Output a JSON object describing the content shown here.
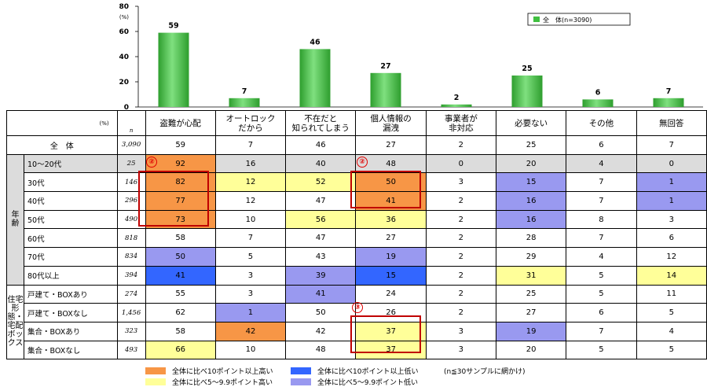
{
  "chart_data": {
    "type": "bar",
    "ylim": [
      0,
      80
    ],
    "yticks": [
      "0",
      "20",
      "40",
      "60",
      "80"
    ],
    "yunit": "(%)",
    "series": [
      {
        "name": "全　体(n=3090)",
        "values": [
          59,
          7,
          46,
          27,
          2,
          25,
          6,
          7
        ]
      }
    ],
    "value_labels": [
      "59",
      "7",
      "46",
      "27",
      "2",
      "25",
      "6",
      "7"
    ],
    "bar_color": "#3fbf3f"
  },
  "legend_box_label": "全　体(n=3090)",
  "table": {
    "unit_header": "(%)",
    "n_header": "n",
    "columns": [
      "盗難が心配",
      "オートロック\nだから",
      "不在だと\n知られてしまう",
      "個人情報の\n漏洩",
      "事業者が\n非対応",
      "必要ない",
      "その他",
      "無回答"
    ],
    "total": {
      "label": "全　体",
      "n": "3,090",
      "values": [
        "59",
        "7",
        "46",
        "27",
        "2",
        "25",
        "6",
        "7"
      ]
    },
    "group_age_label": "年\n齢",
    "group_house_label": "住宅形態・\n宅配ボックス",
    "age_rows": [
      {
        "label": "10～20代",
        "n": "25",
        "values": [
          "92",
          "16",
          "40",
          "48",
          "0",
          "20",
          "4",
          "0"
        ],
        "colors": [
          "oh",
          "",
          "",
          "",
          "",
          "",
          "",
          ""
        ]
      },
      {
        "label": "30代",
        "n": "146",
        "values": [
          "82",
          "12",
          "52",
          "50",
          "3",
          "15",
          "7",
          "1"
        ],
        "colors": [
          "oh",
          "yh",
          "yh",
          "oh",
          "",
          "pl",
          "",
          "pl"
        ]
      },
      {
        "label": "40代",
        "n": "296",
        "values": [
          "77",
          "12",
          "47",
          "41",
          "2",
          "16",
          "7",
          "1"
        ],
        "colors": [
          "oh",
          "",
          "",
          "oh",
          "",
          "pl",
          "",
          "pl"
        ]
      },
      {
        "label": "50代",
        "n": "490",
        "values": [
          "73",
          "10",
          "56",
          "36",
          "2",
          "16",
          "8",
          "3"
        ],
        "colors": [
          "oh",
          "",
          "yh",
          "yh",
          "",
          "pl",
          "",
          ""
        ]
      },
      {
        "label": "60代",
        "n": "818",
        "values": [
          "58",
          "7",
          "47",
          "27",
          "2",
          "28",
          "7",
          "6"
        ],
        "colors": [
          "",
          "",
          "",
          "",
          "",
          "",
          "",
          ""
        ]
      },
      {
        "label": "70代",
        "n": "834",
        "values": [
          "50",
          "5",
          "43",
          "19",
          "2",
          "29",
          "4",
          "12"
        ],
        "colors": [
          "pl",
          "",
          "",
          "pl",
          "",
          "",
          "",
          ""
        ]
      },
      {
        "label": "80代以上",
        "n": "394",
        "values": [
          "41",
          "3",
          "39",
          "15",
          "2",
          "31",
          "5",
          "14"
        ],
        "colors": [
          "bl",
          "",
          "pl",
          "bl",
          "",
          "yh",
          "",
          "yh"
        ]
      }
    ],
    "house_rows": [
      {
        "label": "戸建て・BOXあり",
        "n": "274",
        "values": [
          "55",
          "3",
          "41",
          "24",
          "2",
          "25",
          "5",
          "11"
        ],
        "colors": [
          "",
          "",
          "pl",
          "",
          "",
          "",
          "",
          ""
        ]
      },
      {
        "label": "戸建て・BOXなし",
        "n": "1,456",
        "values": [
          "62",
          "1",
          "50",
          "26",
          "2",
          "27",
          "6",
          "5"
        ],
        "colors": [
          "",
          "pl",
          "",
          "",
          "",
          "",
          "",
          ""
        ]
      },
      {
        "label": "集合・BOXあり",
        "n": "323",
        "values": [
          "58",
          "42",
          "42",
          "37",
          "3",
          "19",
          "7",
          "4"
        ],
        "colors": [
          "",
          "oh",
          "",
          "yh",
          "",
          "pl",
          "",
          ""
        ]
      },
      {
        "label": "集合・BOXなし",
        "n": "493",
        "values": [
          "66",
          "10",
          "48",
          "37",
          "3",
          "20",
          "5",
          "5"
        ],
        "colors": [
          "yh",
          "",
          "",
          "yh",
          "",
          "",
          "",
          ""
        ]
      }
    ]
  },
  "markers": {
    "m2": "②",
    "m3": "③"
  },
  "legend": {
    "orange": "全体に比べ10ポイント以上高い",
    "yellow": "全体に比べ5～9.9ポイント高い",
    "blue": "全体に比べ10ポイント以上低い",
    "purple": "全体に比べ5～9.9ポイント低い",
    "note": "(n≦30サンプルに網かけ)"
  },
  "colors": {
    "orange": "#f79646",
    "yellow": "#ffff99",
    "blue": "#3366ff",
    "purple": "#9999f0",
    "gray": "#dcdcdc",
    "red": "#c00000"
  }
}
